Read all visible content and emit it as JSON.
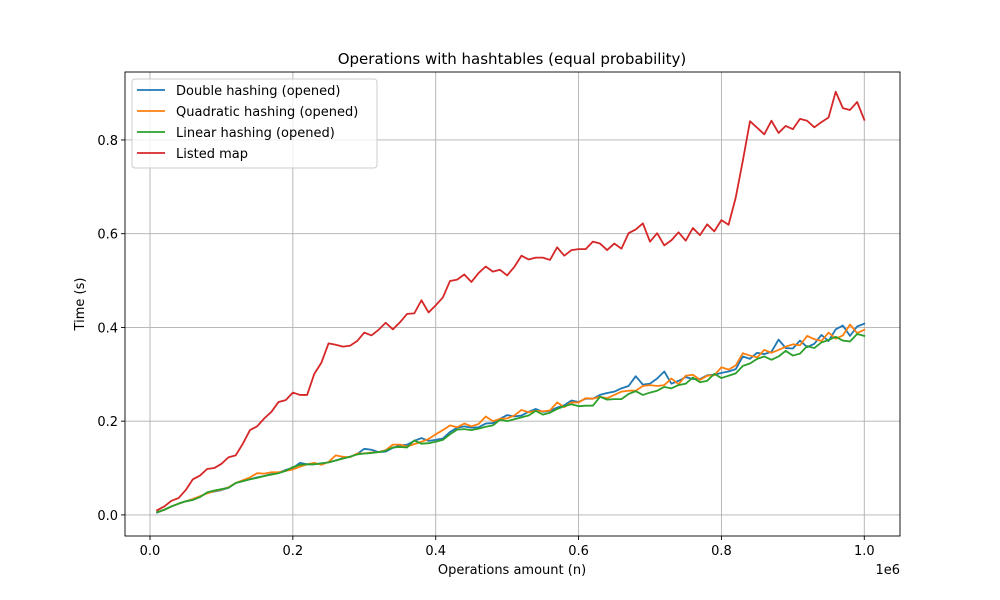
{
  "chart_data": {
    "type": "line",
    "title": "Operations with hashtables (equal probability)",
    "xlabel": "Operations amount (n)",
    "ylabel": "Time (s)",
    "x_offset_label": "1e6",
    "xlim": [
      -35000,
      1050000
    ],
    "ylim": [
      -0.045,
      0.945
    ],
    "xticks": [
      0,
      200000,
      400000,
      600000,
      800000,
      1000000
    ],
    "xtick_labels": [
      "0.0",
      "0.2",
      "0.4",
      "0.6",
      "0.8",
      "1.0"
    ],
    "yticks": [
      0.0,
      0.2,
      0.4,
      0.6,
      0.8
    ],
    "ytick_labels": [
      "0.0",
      "0.2",
      "0.4",
      "0.6",
      "0.8"
    ],
    "grid": true,
    "legend_position": "top-left",
    "x": [
      10000,
      20000,
      30000,
      40000,
      50000,
      60000,
      70000,
      80000,
      90000,
      100000,
      110000,
      120000,
      130000,
      140000,
      150000,
      160000,
      170000,
      180000,
      190000,
      200000,
      210000,
      220000,
      230000,
      240000,
      250000,
      260000,
      270000,
      280000,
      290000,
      300000,
      310000,
      320000,
      330000,
      340000,
      350000,
      360000,
      370000,
      380000,
      390000,
      400000,
      410000,
      420000,
      430000,
      440000,
      450000,
      460000,
      470000,
      480000,
      490000,
      500000,
      510000,
      520000,
      530000,
      540000,
      550000,
      560000,
      570000,
      580000,
      590000,
      600000,
      610000,
      620000,
      630000,
      640000,
      650000,
      660000,
      670000,
      680000,
      690000,
      700000,
      710000,
      720000,
      730000,
      740000,
      750000,
      760000,
      770000,
      780000,
      790000,
      800000,
      810000,
      820000,
      830000,
      840000,
      850000,
      860000,
      870000,
      880000,
      890000,
      900000,
      910000,
      920000,
      930000,
      940000,
      950000,
      960000,
      970000,
      980000,
      990000,
      1000000
    ],
    "series": [
      {
        "name": "Double hashing (opened)",
        "color": "#1f77b4",
        "values": [
          0.005,
          0.011,
          0.018,
          0.024,
          0.029,
          0.032,
          0.039,
          0.047,
          0.05,
          0.053,
          0.058,
          0.068,
          0.072,
          0.076,
          0.08,
          0.083,
          0.087,
          0.09,
          0.096,
          0.1,
          0.111,
          0.108,
          0.108,
          0.11,
          0.112,
          0.116,
          0.121,
          0.124,
          0.13,
          0.141,
          0.139,
          0.134,
          0.135,
          0.143,
          0.148,
          0.15,
          0.158,
          0.164,
          0.158,
          0.16,
          0.163,
          0.177,
          0.186,
          0.189,
          0.186,
          0.187,
          0.195,
          0.196,
          0.205,
          0.213,
          0.21,
          0.212,
          0.22,
          0.226,
          0.22,
          0.222,
          0.229,
          0.234,
          0.244,
          0.241,
          0.248,
          0.248,
          0.256,
          0.26,
          0.263,
          0.27,
          0.275,
          0.296,
          0.278,
          0.28,
          0.291,
          0.306,
          0.28,
          0.286,
          0.294,
          0.29,
          0.29,
          0.298,
          0.299,
          0.303,
          0.306,
          0.311,
          0.338,
          0.333,
          0.346,
          0.343,
          0.348,
          0.374,
          0.356,
          0.355,
          0.372,
          0.358,
          0.365,
          0.384,
          0.371,
          0.396,
          0.404,
          0.382,
          0.402,
          0.408
        ]
      },
      {
        "name": "Quadratic hashing (opened)",
        "color": "#ff7f0e",
        "values": [
          0.006,
          0.011,
          0.018,
          0.024,
          0.029,
          0.034,
          0.04,
          0.046,
          0.051,
          0.054,
          0.059,
          0.068,
          0.074,
          0.08,
          0.089,
          0.088,
          0.091,
          0.091,
          0.094,
          0.097,
          0.103,
          0.108,
          0.111,
          0.107,
          0.113,
          0.127,
          0.124,
          0.123,
          0.131,
          0.131,
          0.133,
          0.134,
          0.138,
          0.15,
          0.15,
          0.146,
          0.151,
          0.156,
          0.162,
          0.172,
          0.181,
          0.191,
          0.187,
          0.195,
          0.189,
          0.194,
          0.21,
          0.2,
          0.205,
          0.206,
          0.212,
          0.224,
          0.219,
          0.222,
          0.221,
          0.223,
          0.24,
          0.23,
          0.24,
          0.24,
          0.249,
          0.248,
          0.252,
          0.249,
          0.256,
          0.263,
          0.265,
          0.265,
          0.275,
          0.277,
          0.275,
          0.277,
          0.291,
          0.279,
          0.297,
          0.299,
          0.288,
          0.297,
          0.298,
          0.315,
          0.31,
          0.319,
          0.345,
          0.34,
          0.336,
          0.352,
          0.346,
          0.352,
          0.359,
          0.364,
          0.362,
          0.382,
          0.375,
          0.371,
          0.389,
          0.376,
          0.383,
          0.406,
          0.388,
          0.395
        ]
      },
      {
        "name": "Linear hashing (opened)",
        "color": "#2ca02c",
        "values": [
          0.006,
          0.011,
          0.018,
          0.024,
          0.029,
          0.032,
          0.038,
          0.048,
          0.052,
          0.055,
          0.058,
          0.068,
          0.072,
          0.076,
          0.079,
          0.083,
          0.086,
          0.089,
          0.094,
          0.102,
          0.107,
          0.108,
          0.108,
          0.11,
          0.112,
          0.116,
          0.12,
          0.124,
          0.129,
          0.131,
          0.132,
          0.134,
          0.137,
          0.144,
          0.145,
          0.144,
          0.159,
          0.152,
          0.153,
          0.156,
          0.16,
          0.172,
          0.182,
          0.183,
          0.181,
          0.184,
          0.188,
          0.191,
          0.203,
          0.2,
          0.204,
          0.208,
          0.212,
          0.222,
          0.214,
          0.218,
          0.226,
          0.232,
          0.236,
          0.232,
          0.233,
          0.233,
          0.252,
          0.246,
          0.247,
          0.247,
          0.258,
          0.264,
          0.256,
          0.261,
          0.265,
          0.273,
          0.27,
          0.277,
          0.28,
          0.293,
          0.283,
          0.286,
          0.301,
          0.292,
          0.297,
          0.302,
          0.318,
          0.323,
          0.333,
          0.338,
          0.331,
          0.338,
          0.35,
          0.34,
          0.344,
          0.36,
          0.356,
          0.368,
          0.373,
          0.38,
          0.372,
          0.37,
          0.386,
          0.382
        ]
      },
      {
        "name": "Listed map",
        "color": "#d62728",
        "values": [
          0.01,
          0.018,
          0.03,
          0.036,
          0.053,
          0.076,
          0.084,
          0.098,
          0.1,
          0.109,
          0.123,
          0.127,
          0.152,
          0.181,
          0.189,
          0.206,
          0.22,
          0.241,
          0.245,
          0.261,
          0.256,
          0.256,
          0.301,
          0.325,
          0.366,
          0.363,
          0.359,
          0.361,
          0.371,
          0.389,
          0.383,
          0.395,
          0.41,
          0.396,
          0.411,
          0.429,
          0.43,
          0.458,
          0.432,
          0.447,
          0.464,
          0.499,
          0.502,
          0.513,
          0.497,
          0.516,
          0.53,
          0.519,
          0.523,
          0.511,
          0.529,
          0.553,
          0.545,
          0.549,
          0.549,
          0.544,
          0.571,
          0.553,
          0.565,
          0.567,
          0.567,
          0.583,
          0.579,
          0.565,
          0.579,
          0.568,
          0.601,
          0.609,
          0.622,
          0.583,
          0.601,
          0.575,
          0.586,
          0.603,
          0.585,
          0.612,
          0.597,
          0.62,
          0.605,
          0.629,
          0.619,
          0.677,
          0.756,
          0.84,
          0.826,
          0.812,
          0.841,
          0.815,
          0.83,
          0.823,
          0.845,
          0.841,
          0.827,
          0.838,
          0.848,
          0.903,
          0.868,
          0.864,
          0.881,
          0.843
        ]
      }
    ]
  }
}
